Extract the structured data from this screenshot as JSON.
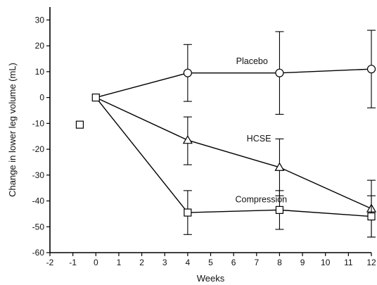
{
  "chart_data": {
    "type": "line",
    "title": "",
    "xlabel": "Weeks",
    "ylabel": "Change in lower leg volume (mL)",
    "xlim": [
      -2,
      12
    ],
    "ylim": [
      -60,
      35
    ],
    "x_ticks": [
      "-2",
      "-1",
      "0",
      "1",
      "2",
      "3",
      "4",
      "5",
      "6",
      "7",
      "8",
      "9",
      "10",
      "11",
      "12"
    ],
    "y_ticks": [
      "30",
      "20",
      "10",
      "0",
      "-10",
      "-20",
      "-30",
      "-40",
      "-50",
      "-60"
    ],
    "grid": false,
    "series": [
      {
        "name": "Placebo",
        "marker": "circle",
        "points": [
          {
            "x": 0,
            "y": 0
          },
          {
            "x": 4,
            "y": 9.5,
            "err_low": -1.5,
            "err_high": 20.5
          },
          {
            "x": 8,
            "y": 9.5,
            "err_low": -6.5,
            "err_high": 25.5
          },
          {
            "x": 12,
            "y": 11,
            "err_low": -4,
            "err_high": 26
          }
        ]
      },
      {
        "name": "HCSE",
        "marker": "triangle",
        "points": [
          {
            "x": 0,
            "y": 0
          },
          {
            "x": 4,
            "y": -16.5,
            "err_low": -26,
            "err_high": -7.5
          },
          {
            "x": 8,
            "y": -27,
            "err_low": -38,
            "err_high": -16
          },
          {
            "x": 12,
            "y": -43,
            "err_low": -54,
            "err_high": -32
          }
        ]
      },
      {
        "name": "Compression",
        "marker": "square",
        "points": [
          {
            "x": 0,
            "y": 0
          },
          {
            "x": 4,
            "y": -44.5,
            "err_low": -53,
            "err_high": -36
          },
          {
            "x": 8,
            "y": -43.5,
            "err_low": -51,
            "err_high": -36
          },
          {
            "x": 12,
            "y": -46,
            "err_low": -54,
            "err_high": -38
          }
        ]
      }
    ],
    "extra_markers": [
      {
        "shape": "square",
        "x": -0.7,
        "y": -10.5
      }
    ]
  }
}
